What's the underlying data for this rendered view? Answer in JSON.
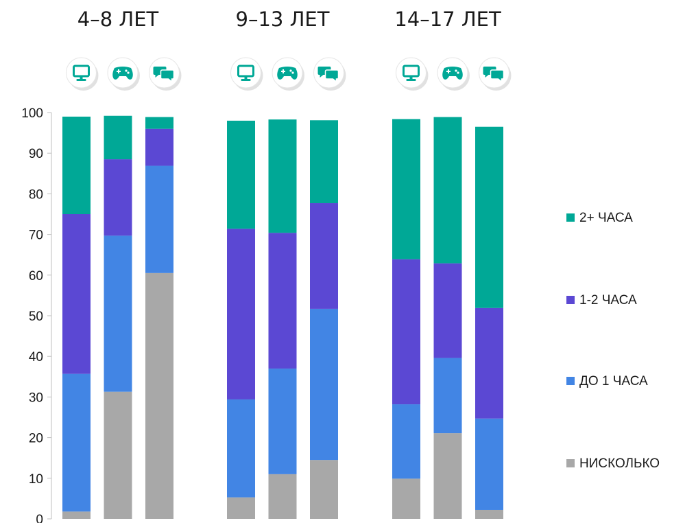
{
  "chart_data": {
    "type": "bar",
    "stacked": true,
    "groups": [
      {
        "label": "4–8 ЛЕТ"
      },
      {
        "label": "9–13 ЛЕТ"
      },
      {
        "label": "14–17 ЛЕТ"
      }
    ],
    "bar_icons": [
      "monitor-icon",
      "gamepad-icon",
      "chat-icon"
    ],
    "series": [
      {
        "name": "НИСКОЛЬКО",
        "color": "#A8A8A8",
        "values": [
          [
            1.8,
            31.3,
            60.5
          ],
          [
            5.3,
            11.0,
            14.5
          ],
          [
            9.9,
            21.1,
            2.2
          ]
        ]
      },
      {
        "name": "ДО 1 ЧАСА",
        "color": "#4285E4",
        "values": [
          [
            33.9,
            38.4,
            26.4
          ],
          [
            24.1,
            26.0,
            37.2
          ],
          [
            18.3,
            18.5,
            22.5
          ]
        ]
      },
      {
        "name": "1-2 ЧАСА",
        "color": "#5B48D3",
        "values": [
          [
            39.3,
            18.8,
            9.1
          ],
          [
            42.0,
            33.4,
            26.0
          ],
          [
            35.7,
            23.3,
            27.2
          ]
        ]
      },
      {
        "name": "2+ ЧАСА",
        "color": "#00A896",
        "values": [
          [
            24.0,
            10.7,
            2.9
          ],
          [
            26.6,
            27.9,
            20.4
          ],
          [
            34.5,
            36.0,
            44.6
          ]
        ]
      }
    ],
    "legend_order": [
      "2+ ЧАСА",
      "1-2 ЧАСА",
      "ДО 1 ЧАСА",
      "НИСКОЛЬКО"
    ],
    "legend_position": "right",
    "ylim": [
      0,
      100
    ],
    "yticks": [
      0,
      10,
      20,
      30,
      40,
      50,
      60,
      70,
      80,
      90,
      100
    ],
    "grid": false,
    "title": "",
    "xlabel": "",
    "ylabel": ""
  }
}
